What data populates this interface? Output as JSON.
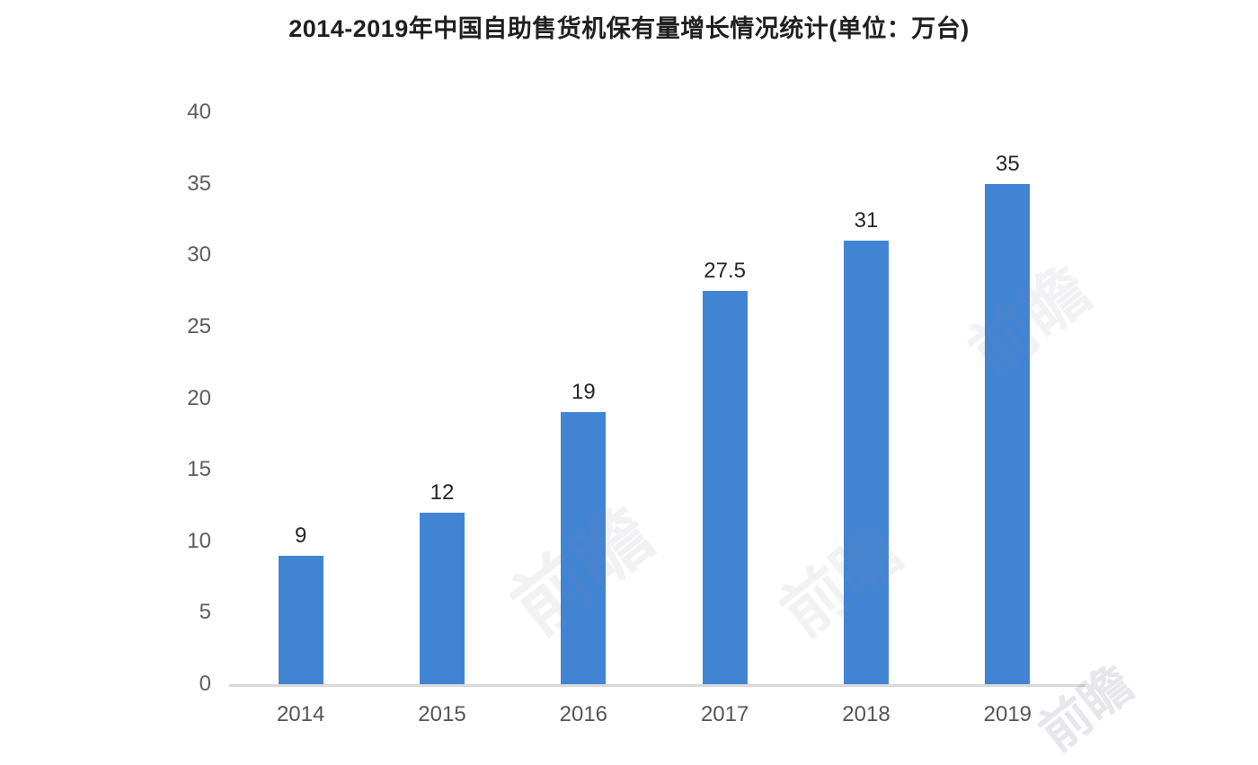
{
  "watermark_text": "前瞻",
  "chart_data": {
    "type": "bar",
    "title": "2014-2019年中国自助售货机保有量增长情况统计(单位：万台)",
    "unit": "万台",
    "categories": [
      "2014",
      "2015",
      "2016",
      "2017",
      "2018",
      "2019"
    ],
    "values": [
      9,
      12,
      19,
      27.5,
      31,
      35
    ],
    "value_labels": [
      "9",
      "12",
      "19",
      "27.5",
      "31",
      "35"
    ],
    "xlabel": "",
    "ylabel": "",
    "ylim": [
      0,
      40
    ],
    "yticks": [
      0,
      5,
      10,
      15,
      20,
      25,
      30,
      35,
      40
    ],
    "grid": false,
    "legend": null,
    "bar_color": "#4284d4",
    "axis_line_color": "#d9d9d9",
    "value_label_color": "#262626",
    "tick_label_color": "#5c5c5c",
    "xtick_label_color": "#555555",
    "title_color": "#1f1f1f"
  }
}
